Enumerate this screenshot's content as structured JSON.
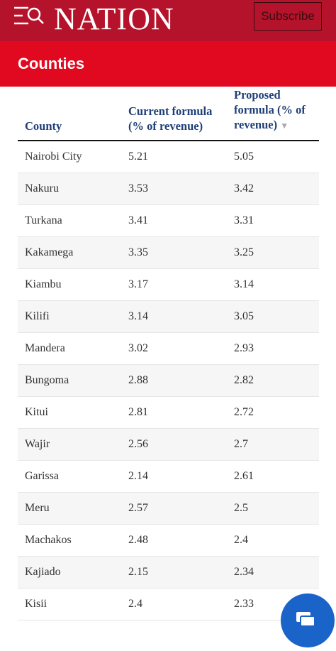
{
  "header": {
    "logo": "NATION",
    "subscribe": "Subscribe"
  },
  "section": {
    "title": "Counties"
  },
  "table": {
    "columns": [
      "County",
      "Current formula (% of revenue)",
      "Proposed formula (% of revenue)"
    ],
    "rows": [
      [
        "Nairobi City",
        5.21,
        5.05
      ],
      [
        "Nakuru",
        3.53,
        3.42
      ],
      [
        "Turkana",
        3.41,
        3.31
      ],
      [
        "Kakamega",
        3.35,
        3.25
      ],
      [
        "Kiambu",
        3.17,
        3.14
      ],
      [
        "Kilifi",
        3.14,
        3.05
      ],
      [
        "Mandera",
        3.02,
        2.93
      ],
      [
        "Bungoma",
        2.88,
        2.82
      ],
      [
        "Kitui",
        2.81,
        2.72
      ],
      [
        "Wajir",
        2.56,
        2.7
      ],
      [
        "Garissa",
        2.14,
        2.61
      ],
      [
        "Meru",
        2.57,
        2.5
      ],
      [
        "Machakos",
        2.48,
        2.4
      ],
      [
        "Kajiado",
        2.15,
        2.34
      ],
      [
        "Kisii",
        2.4,
        2.33
      ]
    ]
  }
}
